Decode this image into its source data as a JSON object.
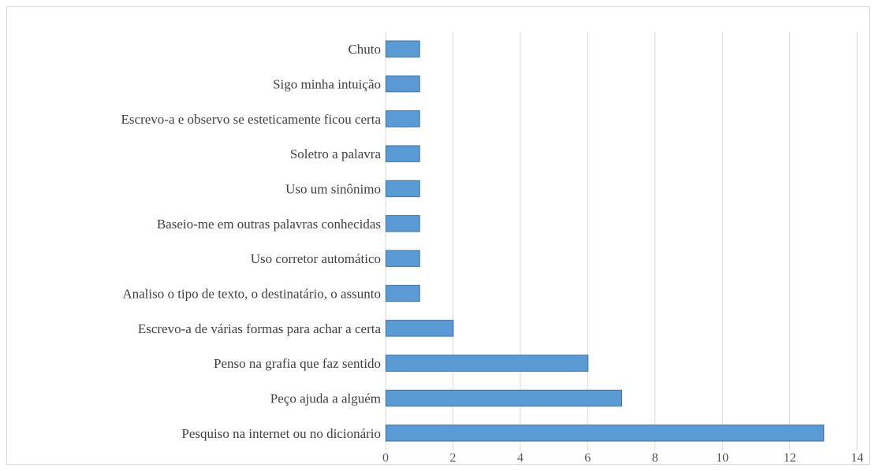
{
  "chart_data": {
    "type": "bar",
    "orientation": "horizontal",
    "title": "",
    "xlabel": "",
    "ylabel": "",
    "xlim": [
      0,
      14
    ],
    "x_ticks": [
      0,
      2,
      4,
      6,
      8,
      10,
      12,
      14
    ],
    "grid": "vertical",
    "legend": "none",
    "bar_color": "#5b9bd5",
    "categories": [
      "Chuto",
      "Sigo minha intuição",
      "Escrevo-a e observo se esteticamente ficou certa",
      "Soletro a palavra",
      "Uso um sinônimo",
      "Baseio-me em outras palavras conhecidas",
      "Uso corretor automático",
      "Analiso o tipo de texto, o destinatário, o assunto",
      "Escrevo-a de várias formas para achar a certa",
      "Penso na grafia que faz sentido",
      "Peço ajuda a alguém",
      "Pesquiso na internet ou no dicionário"
    ],
    "values": [
      1,
      1,
      1,
      1,
      1,
      1,
      1,
      1,
      2,
      6,
      7,
      13
    ]
  }
}
